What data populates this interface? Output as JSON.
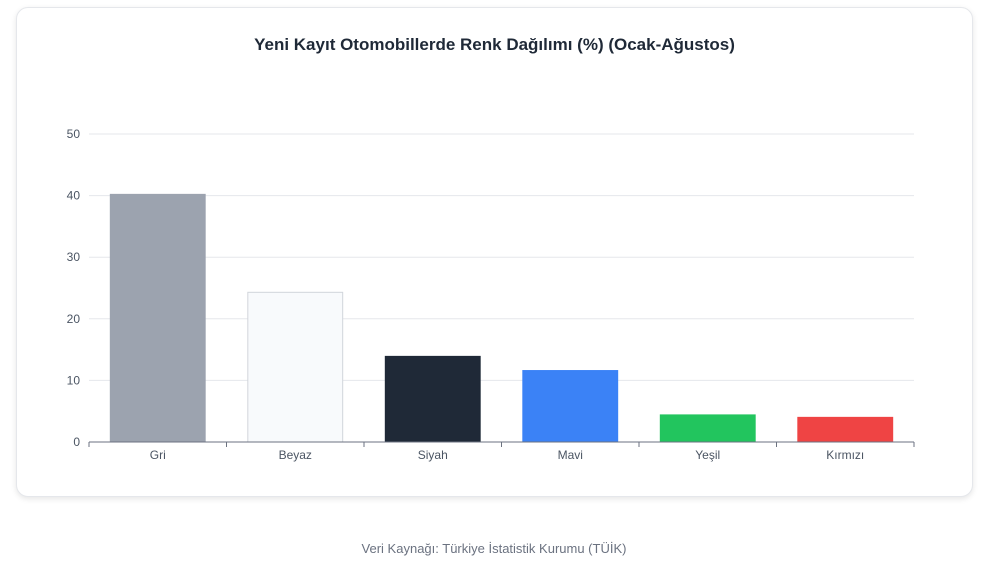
{
  "chart_data": {
    "type": "bar",
    "title": "Yeni Kayıt Otomobillerde Renk Dağılımı (%) (Ocak-Ağustos)",
    "categories": [
      "Gri",
      "Beyaz",
      "Siyah",
      "Mavi",
      "Yeşil",
      "Kırmızı"
    ],
    "values": [
      40.2,
      24.3,
      13.9,
      11.6,
      4.4,
      4.0
    ],
    "colors": [
      "#9ca3af",
      "#f8fafc",
      "#1f2937",
      "#3b82f6",
      "#22c55e",
      "#ef4444"
    ],
    "bar_border_colors": [
      "#9ca3af",
      "#d1d5db",
      "#1f2937",
      "#3b82f6",
      "#22c55e",
      "#ef4444"
    ],
    "ylim": [
      0,
      50
    ],
    "yticks": [
      0,
      10,
      20,
      30,
      40,
      50
    ],
    "grid": true,
    "legend": "none"
  },
  "footer": {
    "source": "Veri Kaynağı: Türkiye İstatistik Kurumu (TÜİK)"
  }
}
